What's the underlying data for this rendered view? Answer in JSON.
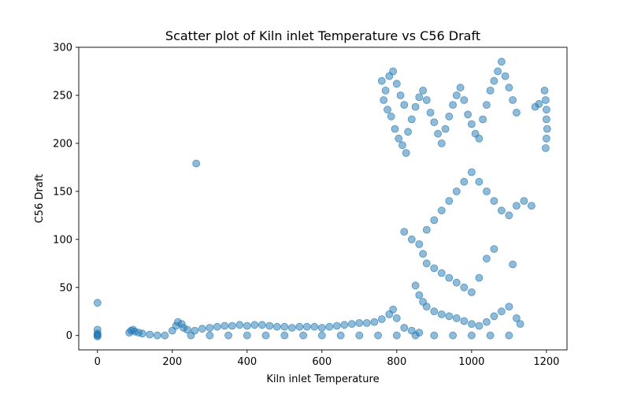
{
  "chart_data": {
    "type": "scatter",
    "title": "Scatter plot of Kiln inlet Temperature vs C56 Draft",
    "xlabel": "Kiln inlet Temperature",
    "ylabel": "C56 Draft",
    "xlim": [
      -50,
      1255
    ],
    "ylim": [
      -15,
      300
    ],
    "xticks": [
      0,
      200,
      400,
      600,
      800,
      1000,
      1200
    ],
    "yticks": [
      0,
      50,
      100,
      150,
      200,
      250,
      300
    ],
    "grid": false,
    "legend": "none",
    "series": [
      {
        "color": "#1f77b4",
        "opacity": 0.5,
        "points": [
          [
            0,
            0
          ],
          [
            0,
            1
          ],
          [
            0,
            -1
          ],
          [
            0,
            2
          ],
          [
            0,
            6
          ],
          [
            0,
            34
          ],
          [
            85,
            3
          ],
          [
            90,
            5
          ],
          [
            95,
            6
          ],
          [
            100,
            4
          ],
          [
            110,
            3
          ],
          [
            120,
            2
          ],
          [
            140,
            1
          ],
          [
            160,
            0
          ],
          [
            180,
            0
          ],
          [
            200,
            5
          ],
          [
            210,
            10
          ],
          [
            215,
            14
          ],
          [
            225,
            12
          ],
          [
            230,
            8
          ],
          [
            264,
            179
          ],
          [
            240,
            6
          ],
          [
            260,
            5
          ],
          [
            280,
            7
          ],
          [
            300,
            8
          ],
          [
            320,
            9
          ],
          [
            340,
            10
          ],
          [
            360,
            10
          ],
          [
            380,
            11
          ],
          [
            400,
            10
          ],
          [
            420,
            11
          ],
          [
            440,
            11
          ],
          [
            460,
            10
          ],
          [
            480,
            9
          ],
          [
            500,
            9
          ],
          [
            520,
            8
          ],
          [
            540,
            9
          ],
          [
            560,
            9
          ],
          [
            580,
            9
          ],
          [
            600,
            8
          ],
          [
            620,
            9
          ],
          [
            640,
            10
          ],
          [
            660,
            11
          ],
          [
            680,
            12
          ],
          [
            700,
            13
          ],
          [
            720,
            13
          ],
          [
            740,
            14
          ],
          [
            760,
            17
          ],
          [
            780,
            22
          ],
          [
            790,
            27
          ],
          [
            800,
            18
          ],
          [
            250,
            0
          ],
          [
            300,
            0
          ],
          [
            350,
            0
          ],
          [
            400,
            0
          ],
          [
            450,
            0
          ],
          [
            500,
            0
          ],
          [
            550,
            0
          ],
          [
            600,
            0
          ],
          [
            650,
            0
          ],
          [
            700,
            0
          ],
          [
            750,
            0
          ],
          [
            800,
            0
          ],
          [
            850,
            0
          ],
          [
            900,
            0
          ],
          [
            950,
            0
          ],
          [
            1000,
            0
          ],
          [
            1050,
            0
          ],
          [
            1100,
            0
          ],
          [
            760,
            265
          ],
          [
            770,
            255
          ],
          [
            780,
            270
          ],
          [
            790,
            275
          ],
          [
            800,
            262
          ],
          [
            810,
            250
          ],
          [
            820,
            240
          ],
          [
            765,
            245
          ],
          [
            775,
            235
          ],
          [
            785,
            228
          ],
          [
            795,
            215
          ],
          [
            805,
            205
          ],
          [
            815,
            198
          ],
          [
            825,
            190
          ],
          [
            830,
            212
          ],
          [
            840,
            225
          ],
          [
            850,
            238
          ],
          [
            860,
            248
          ],
          [
            870,
            255
          ],
          [
            880,
            245
          ],
          [
            890,
            232
          ],
          [
            900,
            222
          ],
          [
            910,
            210
          ],
          [
            920,
            200
          ],
          [
            930,
            215
          ],
          [
            940,
            228
          ],
          [
            950,
            240
          ],
          [
            960,
            250
          ],
          [
            970,
            258
          ],
          [
            980,
            245
          ],
          [
            990,
            230
          ],
          [
            1000,
            220
          ],
          [
            1010,
            210
          ],
          [
            1020,
            205
          ],
          [
            1030,
            225
          ],
          [
            1040,
            240
          ],
          [
            1050,
            255
          ],
          [
            1060,
            265
          ],
          [
            1070,
            275
          ],
          [
            1080,
            285
          ],
          [
            1090,
            270
          ],
          [
            1100,
            258
          ],
          [
            1110,
            245
          ],
          [
            1120,
            232
          ],
          [
            1195,
            255
          ],
          [
            1198,
            245
          ],
          [
            1200,
            235
          ],
          [
            1200,
            225
          ],
          [
            1202,
            215
          ],
          [
            1200,
            205
          ],
          [
            1198,
            195
          ],
          [
            1170,
            238
          ],
          [
            1180,
            241
          ],
          [
            880,
            110
          ],
          [
            900,
            120
          ],
          [
            920,
            130
          ],
          [
            940,
            140
          ],
          [
            960,
            150
          ],
          [
            980,
            160
          ],
          [
            1000,
            170
          ],
          [
            1020,
            160
          ],
          [
            1040,
            150
          ],
          [
            1060,
            140
          ],
          [
            1080,
            130
          ],
          [
            1100,
            125
          ],
          [
            1120,
            135
          ],
          [
            1140,
            140
          ],
          [
            1160,
            135
          ],
          [
            1110,
            74
          ],
          [
            820,
            108
          ],
          [
            840,
            100
          ],
          [
            860,
            95
          ],
          [
            870,
            85
          ],
          [
            880,
            75
          ],
          [
            900,
            70
          ],
          [
            920,
            65
          ],
          [
            940,
            60
          ],
          [
            960,
            55
          ],
          [
            980,
            50
          ],
          [
            1000,
            45
          ],
          [
            1020,
            60
          ],
          [
            1040,
            80
          ],
          [
            1060,
            90
          ],
          [
            850,
            52
          ],
          [
            860,
            42
          ],
          [
            870,
            35
          ],
          [
            880,
            30
          ],
          [
            900,
            25
          ],
          [
            920,
            22
          ],
          [
            940,
            20
          ],
          [
            960,
            18
          ],
          [
            980,
            15
          ],
          [
            1000,
            12
          ],
          [
            1020,
            10
          ],
          [
            1040,
            14
          ],
          [
            1060,
            20
          ],
          [
            1080,
            25
          ],
          [
            1100,
            30
          ],
          [
            1120,
            18
          ],
          [
            1130,
            12
          ],
          [
            820,
            8
          ],
          [
            840,
            5
          ],
          [
            860,
            3
          ]
        ]
      }
    ]
  }
}
